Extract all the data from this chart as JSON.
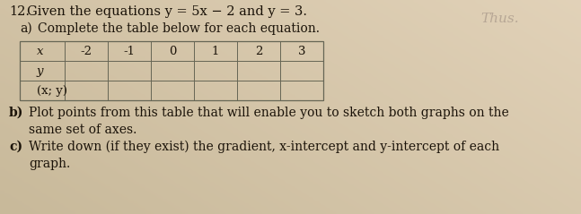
{
  "title_number": "12.",
  "title_text": "Given the equations y = 5x − 2 and y = 3.",
  "part_a_label": "a)",
  "part_a_text": "Complete the table below for each equation.",
  "part_b_label": "b)",
  "part_b_text": "Plot points from this table that will enable you to sketch both graphs on the",
  "part_b2": "same set of axes.",
  "part_c_label": "c)",
  "part_c_text": "Write down (if they exist) the gradient, x-intercept and y-intercept of each",
  "part_c2": "graph.",
  "watermark": "Thus.",
  "table_x_values": [
    "-2",
    "-1",
    "0",
    "1",
    "2",
    "3"
  ],
  "row_labels": [
    "x",
    "y",
    "(x; y)"
  ],
  "bg_color": "#c8b99a",
  "bg_color_light": "#ddd0bc",
  "text_color": "#1a1208",
  "table_line_color": "#666655",
  "font_size_title": 10.5,
  "font_size_body": 10,
  "font_size_table": 9.5
}
